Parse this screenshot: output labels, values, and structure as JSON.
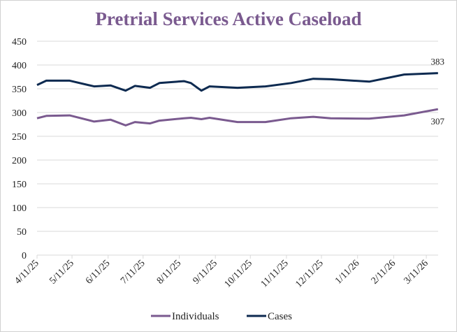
{
  "chart_data": {
    "type": "line",
    "title": "Pretrial Services Active Caseload",
    "xlabel": "",
    "ylabel": "",
    "ylim": [
      0,
      450
    ],
    "yticks": [
      0,
      50,
      100,
      150,
      200,
      250,
      300,
      350,
      400,
      450
    ],
    "xticks": [
      "4/11/25",
      "5/11/25",
      "6/11/25",
      "7/11/25",
      "8/11/25",
      "9/11/25",
      "10/11/25",
      "11/11/25",
      "12/11/25",
      "1/11/26",
      "2/11/26",
      "3/11/26"
    ],
    "grid": true,
    "legend_position": "bottom",
    "x": [
      "2025-04-11",
      "2025-04-19",
      "2025-05-09",
      "2025-05-30",
      "2025-06-13",
      "2025-06-26",
      "2025-07-04",
      "2025-07-17",
      "2025-07-25",
      "2025-08-15",
      "2025-08-21",
      "2025-08-30",
      "2025-09-06",
      "2025-09-30",
      "2025-10-24",
      "2025-11-15",
      "2025-12-04",
      "2025-12-19",
      "2026-01-21",
      "2026-02-20",
      "2026-03-21"
    ],
    "series": [
      {
        "name": "Individuals",
        "color": "#7a5a8f",
        "values": [
          288,
          293,
          294,
          281,
          285,
          273,
          280,
          277,
          283,
          288,
          289,
          286,
          289,
          280,
          280,
          288,
          291,
          288,
          287,
          294,
          307
        ],
        "end_label": "307"
      },
      {
        "name": "Cases",
        "color": "#0d2a50",
        "values": [
          358,
          367,
          367,
          355,
          357,
          346,
          356,
          352,
          362,
          366,
          362,
          346,
          355,
          352,
          355,
          362,
          371,
          370,
          365,
          380,
          383
        ],
        "end_label": "383"
      }
    ],
    "title_color": "#7a5a8f"
  }
}
